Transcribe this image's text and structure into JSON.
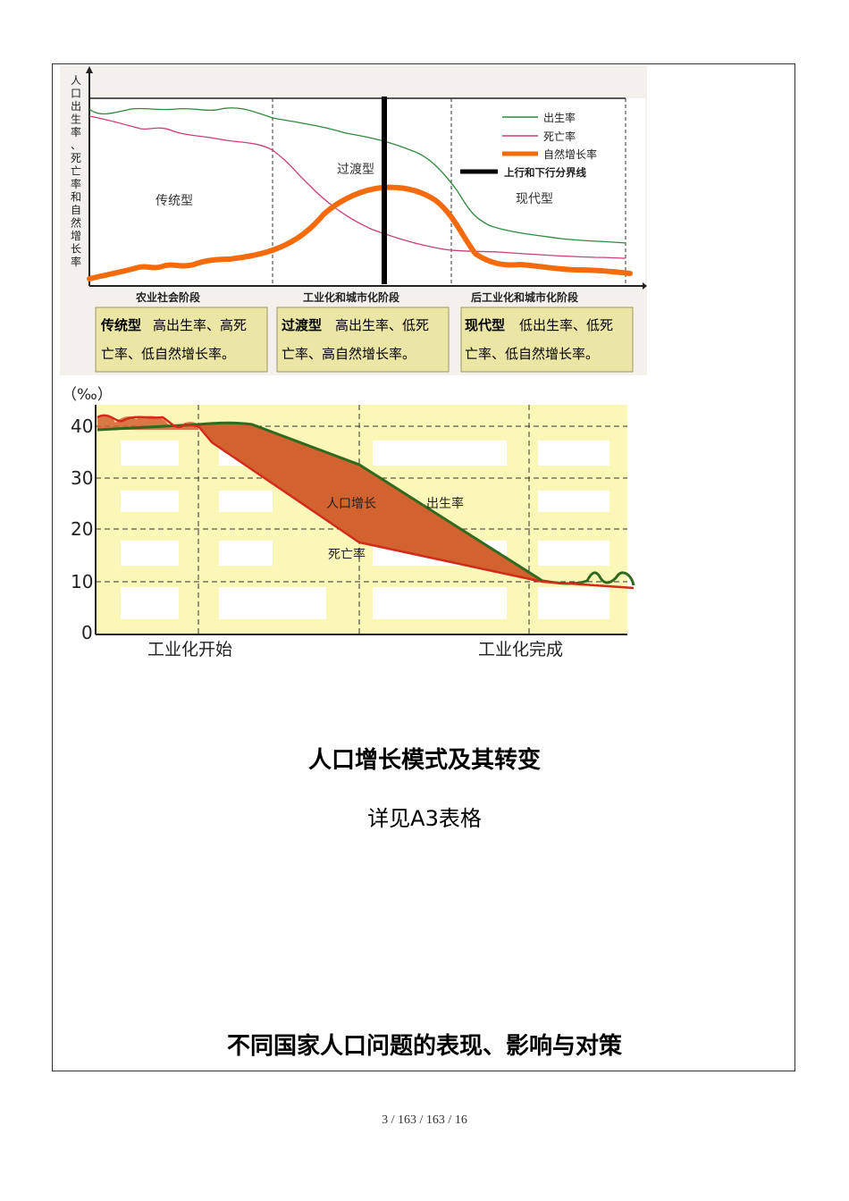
{
  "figure1": {
    "y_label_chars": [
      "人",
      "口",
      "出",
      "生",
      "率",
      "、",
      "死",
      "亡",
      "率",
      "和",
      "自",
      "然",
      "增",
      "长",
      "率"
    ],
    "stages": [
      "农业社会阶段",
      "工业化和城市化阶段",
      "后工业化和城市化阶段"
    ],
    "region_labels": [
      "传统型",
      "过渡型",
      "现代型"
    ],
    "legend": [
      "出生率",
      "死亡率",
      "自然增长率",
      "上行和下行分界线"
    ],
    "colors": {
      "birth": "#2e8b3e",
      "death": "#c8407a",
      "growth": "#f56a0a",
      "divider": "#000000"
    },
    "boxes": [
      {
        "type": "传统型",
        "line1": "高出生率、高死",
        "line2": "亡率、低自然增长率。"
      },
      {
        "type": "过渡型",
        "line1": "高出生率、低死",
        "line2": "亡率、高自然增长率。"
      },
      {
        "type": "现代型",
        "line1": "低出生率、低死",
        "line2": "亡率、低自然增长率。"
      }
    ]
  },
  "figure2": {
    "unit": "（‰）",
    "y_ticks": [
      "40",
      "30",
      "20",
      "10",
      "0"
    ],
    "x_labels": [
      "工业化开始",
      "工业化完成"
    ],
    "annotations": {
      "growth": "人口增长",
      "birth": "出生率",
      "death": "死亡率"
    },
    "colors": {
      "fill": "#d2622f",
      "birth": "#2f6a1e",
      "death": "#d42a1a",
      "background": "#fbf7b8"
    }
  },
  "heading1": "人口增长模式及其转变",
  "subtext": "详见A3表格",
  "heading2": "不同国家人口问题的表现、影响与对策",
  "footer": "3 / 163 / 163 / 16"
}
